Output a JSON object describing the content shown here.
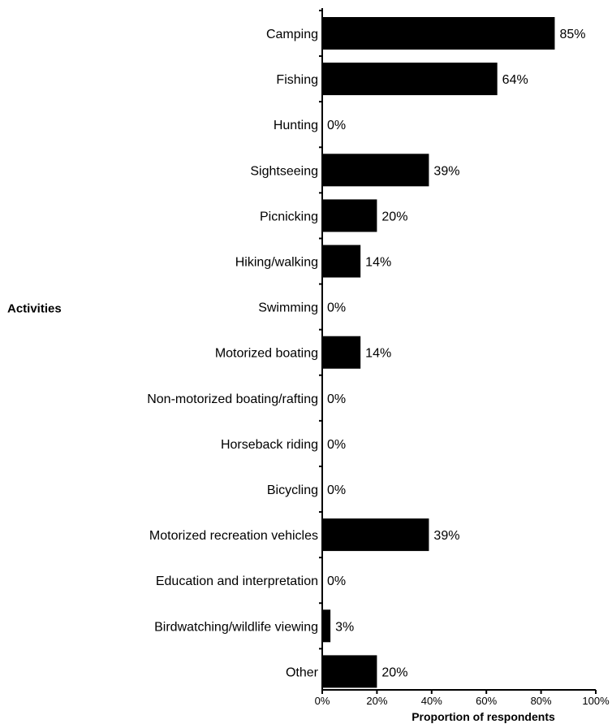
{
  "chart_data": {
    "type": "bar",
    "orientation": "horizontal",
    "categories": [
      "Camping",
      "Fishing",
      "Hunting",
      "Sightseeing",
      "Picnicking",
      "Hiking/walking",
      "Swimming",
      "Motorized boating",
      "Non-motorized boating/rafting",
      "Horseback riding",
      "Bicycling",
      "Motorized recreation vehicles",
      "Education and interpretation",
      "Birdwatching/wildlife viewing",
      "Other"
    ],
    "values": [
      85,
      64,
      0,
      39,
      20,
      14,
      0,
      14,
      0,
      0,
      0,
      39,
      0,
      3,
      20
    ],
    "value_labels": [
      "85%",
      "64%",
      "0%",
      "39%",
      "20%",
      "14%",
      "0%",
      "14%",
      "0%",
      "0%",
      "0%",
      "39%",
      "0%",
      "3%",
      "20%"
    ],
    "xlabel": "Proportion of respondents",
    "ylabel": "Activities",
    "xlim": [
      0,
      100
    ],
    "x_ticks": [
      0,
      20,
      40,
      60,
      80,
      100
    ],
    "x_tick_labels": [
      "0%",
      "20%",
      "40%",
      "60%",
      "80%",
      "100%"
    ],
    "bar_color": "#000000",
    "grid": false,
    "legend": "none"
  }
}
